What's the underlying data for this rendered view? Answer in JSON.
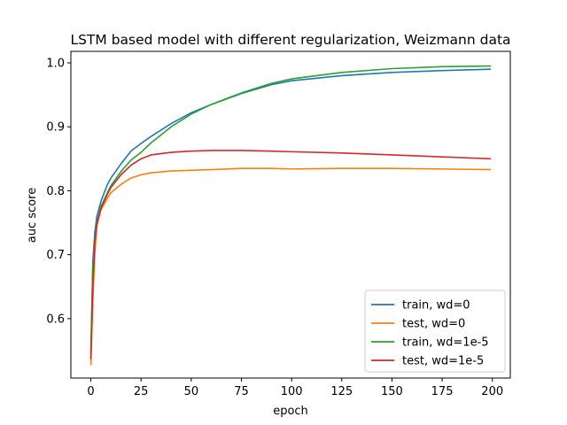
{
  "chart_data": {
    "type": "line",
    "title": "LSTM based model with different regularization, Weizmann data",
    "xlabel": "epoch",
    "ylabel": "auc score",
    "xlim": [
      -9.95,
      208.95
    ],
    "ylim": [
      0.507,
      1.018
    ],
    "xticks": [
      0,
      25,
      50,
      75,
      100,
      125,
      150,
      175,
      200
    ],
    "yticks": [
      0.6,
      0.7,
      0.8,
      0.9,
      1.0
    ],
    "xtick_labels": [
      "0",
      "25",
      "50",
      "75",
      "100",
      "125",
      "150",
      "175",
      "200"
    ],
    "ytick_labels": [
      "0.6",
      "0.7",
      "0.8",
      "0.9",
      "1.0"
    ],
    "grid": false,
    "legend_position": "bottom-right",
    "x": [
      0,
      1,
      2,
      3,
      5,
      8,
      10,
      15,
      20,
      25,
      30,
      40,
      50,
      60,
      75,
      90,
      100,
      125,
      150,
      175,
      199
    ],
    "series": [
      {
        "name": "train, wd=0",
        "color": "#1f77b4",
        "values": [
          0.538,
          0.69,
          0.735,
          0.76,
          0.783,
          0.808,
          0.82,
          0.842,
          0.862,
          0.874,
          0.885,
          0.905,
          0.922,
          0.935,
          0.952,
          0.966,
          0.972,
          0.98,
          0.985,
          0.988,
          0.99
        ]
      },
      {
        "name": "test, wd=0",
        "color": "#ff7f0e",
        "values": [
          0.528,
          0.63,
          0.705,
          0.745,
          0.77,
          0.787,
          0.797,
          0.81,
          0.82,
          0.825,
          0.828,
          0.831,
          0.832,
          0.833,
          0.835,
          0.835,
          0.834,
          0.835,
          0.835,
          0.834,
          0.833
        ]
      },
      {
        "name": "train, wd=1e-5",
        "color": "#2ca02c",
        "values": [
          0.55,
          0.68,
          0.725,
          0.75,
          0.775,
          0.795,
          0.808,
          0.83,
          0.848,
          0.86,
          0.875,
          0.9,
          0.92,
          0.935,
          0.953,
          0.968,
          0.975,
          0.985,
          0.991,
          0.994,
          0.995
        ]
      },
      {
        "name": "test, wd=1e-5",
        "color": "#d62728",
        "values": [
          0.537,
          0.65,
          0.72,
          0.748,
          0.772,
          0.793,
          0.805,
          0.825,
          0.84,
          0.85,
          0.856,
          0.86,
          0.862,
          0.863,
          0.863,
          0.862,
          0.861,
          0.859,
          0.856,
          0.853,
          0.85
        ]
      }
    ]
  }
}
